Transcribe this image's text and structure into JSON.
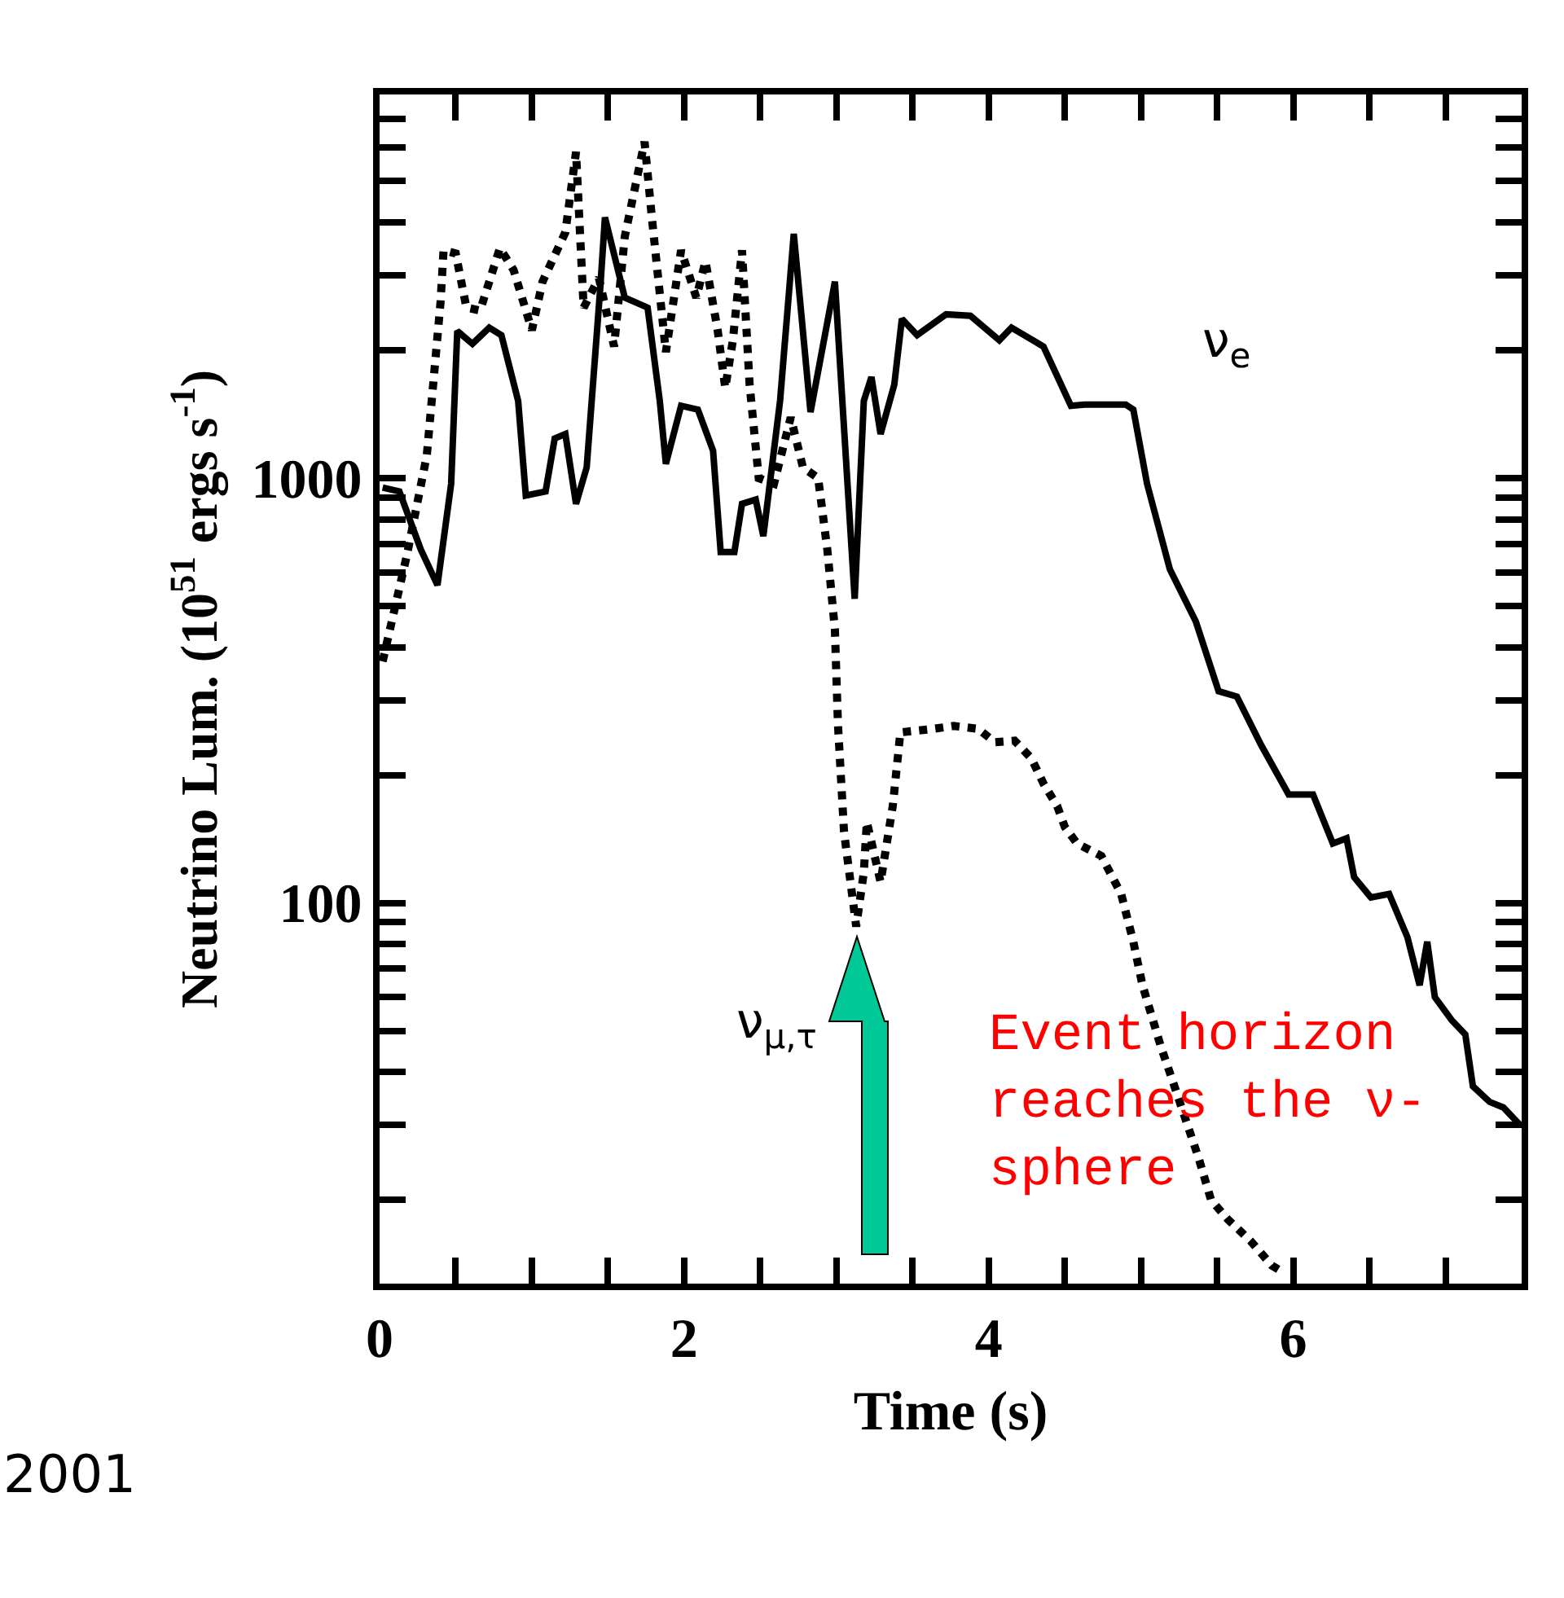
{
  "chart_data": {
    "type": "line",
    "xlabel": "Time (s)",
    "ylabel": "Neutrino Lum. (10$^{51}$ ergs s$^{-1}$)",
    "log": "y",
    "xlim": [
      0,
      7.5
    ],
    "ylim": [
      12.7,
      8000
    ],
    "xticks": [
      0,
      {
        "value": 0.5,
        "label": null
      },
      {
        "value": 1,
        "label": null
      },
      {
        "value": 1.5,
        "label": null
      },
      2,
      {
        "value": 2.5,
        "label": null
      },
      {
        "value": 3,
        "label": null
      },
      {
        "value": 3.5,
        "label": null
      },
      4,
      {
        "value": 4.5,
        "label": null
      },
      {
        "value": 5,
        "label": null
      },
      {
        "value": 5.5,
        "label": null
      },
      6,
      {
        "value": 6.5,
        "label": null
      },
      {
        "value": 7,
        "label": null
      }
    ],
    "yticks": [
      {
        "value": 20,
        "label": null
      },
      {
        "value": 30,
        "label": null
      },
      {
        "value": 40,
        "label": null
      },
      {
        "value": 50,
        "label": null
      },
      {
        "value": 60,
        "label": null
      },
      {
        "value": 70,
        "label": null
      },
      {
        "value": 80,
        "label": null
      },
      {
        "value": 90,
        "label": null
      },
      100,
      {
        "value": 200,
        "label": null
      },
      {
        "value": 300,
        "label": null
      },
      {
        "value": 400,
        "label": null
      },
      {
        "value": 500,
        "label": null
      },
      {
        "value": 600,
        "label": null
      },
      {
        "value": 700,
        "label": null
      },
      {
        "value": 800,
        "label": null
      },
      {
        "value": 900,
        "label": null
      },
      1000,
      {
        "value": 2000,
        "label": null
      },
      {
        "value": 3000,
        "label": null
      },
      {
        "value": 4000,
        "label": null
      },
      {
        "value": 5000,
        "label": null
      },
      {
        "value": 6000,
        "label": null
      },
      {
        "value": 7000,
        "label": null
      }
    ],
    "grid": false,
    "legend": false,
    "marker": "none",
    "series": [
      {
        "name": "ν$_{e}$",
        "color": "#000000",
        "line_style": "solid",
        "x": [
          0.02,
          0.13,
          0.27,
          0.38,
          0.47,
          0.51,
          0.61,
          0.72,
          0.8,
          0.91,
          0.96,
          1.09,
          1.15,
          1.22,
          1.29,
          1.36,
          1.45,
          1.48,
          1.61,
          1.76,
          1.84,
          1.88,
          1.98,
          2.09,
          2.19,
          2.24,
          2.33,
          2.38,
          2.47,
          2.52,
          2.63,
          2.72,
          2.83,
          2.99,
          3.12,
          3.18,
          3.23,
          3.29,
          3.38,
          3.43,
          3.53,
          3.72,
          3.88,
          4.07,
          4.15,
          4.36,
          4.54,
          4.63,
          4.9,
          4.95,
          5.04,
          5.19,
          5.36,
          5.51,
          5.63,
          5.79,
          5.97,
          6.13,
          6.26,
          6.35,
          6.4,
          6.51,
          6.63,
          6.75,
          6.83,
          6.88,
          6.93,
          7.04,
          7.13,
          7.18,
          7.29,
          7.38,
          7.49
        ],
        "values": [
          950,
          930,
          680,
          560,
          970,
          2220,
          2070,
          2260,
          2170,
          1520,
          910,
          930,
          1240,
          1270,
          870,
          1060,
          2830,
          4110,
          2660,
          2520,
          1520,
          1080,
          1480,
          1450,
          1160,
          670,
          670,
          870,
          890,
          730,
          1520,
          3760,
          1430,
          2900,
          520,
          1520,
          1730,
          1270,
          1660,
          2370,
          2170,
          2430,
          2410,
          2110,
          2260,
          2040,
          1480,
          1490,
          1490,
          1450,
          970,
          610,
          460,
          315,
          306,
          235,
          180,
          180,
          138,
          142,
          115,
          103,
          105,
          83,
          64,
          81,
          60,
          53,
          49,
          37,
          34,
          33,
          30
        ]
      },
      {
        "name": "ν$_{μ,τ}$",
        "color": "#000000",
        "line_style": "dotted",
        "x": [
          0.02,
          0.18,
          0.31,
          0.4,
          0.42,
          0.5,
          0.57,
          0.66,
          0.79,
          0.88,
          1.0,
          1.07,
          1.22,
          1.29,
          1.34,
          1.44,
          1.54,
          1.61,
          1.74,
          1.79,
          1.88,
          1.98,
          2.08,
          2.14,
          2.22,
          2.27,
          2.32,
          2.38,
          2.43,
          2.49,
          2.59,
          2.7,
          2.78,
          2.88,
          2.94,
          2.99,
          3.01,
          3.05,
          3.13,
          3.18,
          3.2,
          3.29,
          3.37,
          3.42,
          3.64,
          3.77,
          3.93,
          4.04,
          4.17,
          4.28,
          4.36,
          4.45,
          4.5,
          4.58,
          4.74,
          4.87,
          4.95,
          5.01,
          5.13,
          5.22,
          5.38,
          5.46,
          5.57,
          5.72,
          5.86,
          5.92
        ],
        "values": [
          370,
          660,
          1130,
          2590,
          3440,
          3380,
          2520,
          2480,
          3480,
          3090,
          2230,
          2900,
          3790,
          5860,
          2520,
          2960,
          2040,
          3700,
          6190,
          4040,
          1980,
          3440,
          2660,
          3240,
          2230,
          1630,
          2110,
          3440,
          1660,
          1000,
          970,
          1390,
          1060,
          1000,
          680,
          440,
          264,
          147,
          88,
          118,
          155,
          112,
          169,
          252,
          257,
          261,
          257,
          239,
          241,
          219,
          191,
          169,
          151,
          138,
          129,
          105,
          81,
          64,
          46,
          37,
          25,
          20,
          18,
          16,
          14,
          13.6
        ]
      }
    ],
    "annotations": [
      "Event horizon\nreaches the ν-\nsphere",
      "2001"
    ]
  }
}
